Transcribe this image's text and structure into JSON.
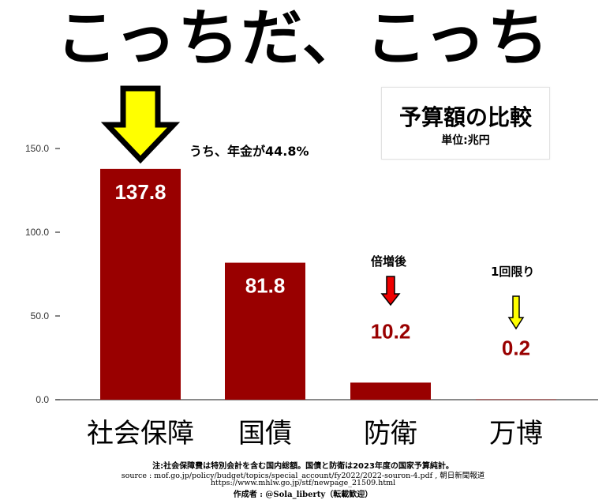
{
  "headline": "こっちだ、こっち",
  "legend": {
    "title": "予算額の比較",
    "unit": "単位:兆円"
  },
  "annotations": {
    "pension": "うち、年金が44.8%",
    "defense": "倍増後",
    "expo": "1回限り"
  },
  "footer": {
    "note": "注:社会保障費は特別会計を含む国内総額。国債と防衛は2023年度の国家予算純計。",
    "source": "source : mof.go.jp/policy/budget/topics/special_account/fy2022/2022-souron-4.pdf , 朝日新聞報道",
    "url": "https://www.mhlw.go.jp/stf/newpage_21509.html",
    "author": "作成者 : @Sola_liberty（転載歓迎）"
  },
  "chart_data": {
    "type": "bar",
    "categories": [
      "社会保障",
      "国債",
      "防衛",
      "万博"
    ],
    "values": [
      137.8,
      81.8,
      10.2,
      0.2
    ],
    "value_labels": [
      "137.8",
      "81.8",
      "10.2",
      "0.2"
    ],
    "yticks": [
      "0.0",
      "50.0",
      "100.0",
      "150.0"
    ],
    "ytick_values": [
      0,
      50,
      100,
      150
    ],
    "ylim": [
      0,
      150
    ],
    "bar_color": "#990000",
    "label_inside_color": "#ffffff",
    "label_outside_color": "#990000",
    "arrow_colors": {
      "big": "#ffff00",
      "defense": "#ee0000",
      "expo": "#ffff00"
    }
  }
}
